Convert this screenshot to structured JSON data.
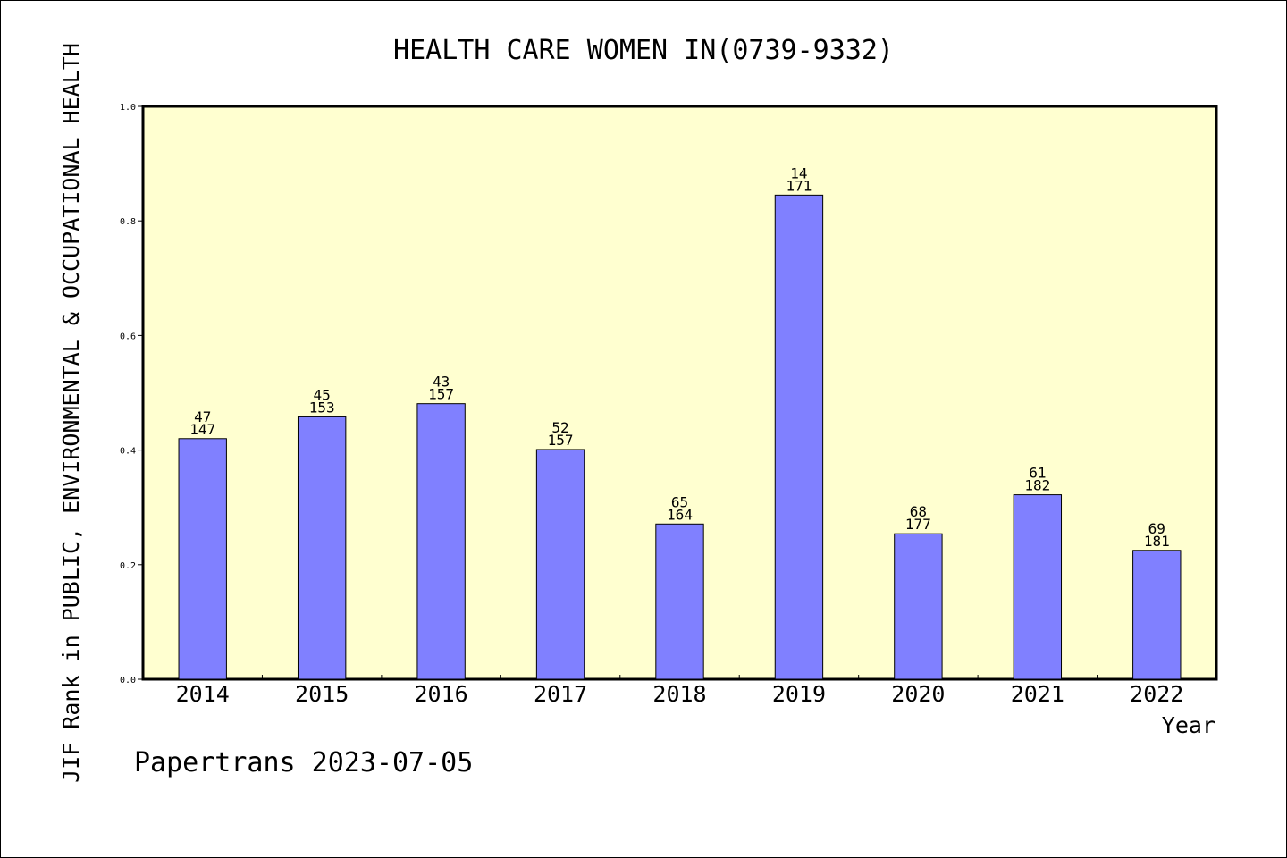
{
  "chart_data": {
    "type": "bar",
    "title": "HEALTH CARE WOMEN IN(0739-9332)",
    "xlabel": "Year",
    "ylabel": "JIF Rank in PUBLIC, ENVIRONMENTAL & OCCUPATIONAL HEALTH",
    "categories": [
      "2014",
      "2015",
      "2016",
      "2017",
      "2018",
      "2019",
      "2020",
      "2021",
      "2022"
    ],
    "values": [
      0.42,
      0.458,
      0.481,
      0.401,
      0.271,
      0.845,
      0.254,
      0.322,
      0.225
    ],
    "rank_labels": [
      "47",
      "45",
      "43",
      "52",
      "65",
      "14",
      "68",
      "61",
      "69"
    ],
    "total_labels": [
      "147",
      "153",
      "157",
      "157",
      "164",
      "171",
      "177",
      "182",
      "181"
    ],
    "ylim": [
      0,
      1.0
    ],
    "yticks": [
      "0.0",
      "0.2",
      "0.4",
      "0.6",
      "0.8",
      "1.0"
    ],
    "grid": false,
    "legend": "none",
    "colors": {
      "bar": "#8080ff",
      "plot_background": "#ffffd0",
      "axis": "#000000"
    }
  },
  "footer": "Papertrans 2023-07-05"
}
